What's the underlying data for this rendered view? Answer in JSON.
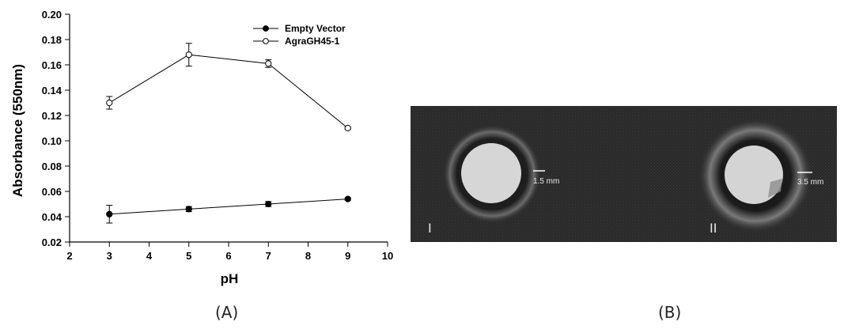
{
  "chart_data": {
    "type": "line",
    "title": "",
    "xlabel": "pH",
    "ylabel": "Absorbance (550nm)",
    "xlim": [
      2,
      10
    ],
    "ylim": [
      0.02,
      0.2
    ],
    "x_ticks": [
      "2",
      "3",
      "4",
      "5",
      "6",
      "7",
      "8",
      "9",
      "10"
    ],
    "y_ticks": [
      "0.02",
      "0.04",
      "0.06",
      "0.08",
      "0.10",
      "0.12",
      "0.14",
      "0.16",
      "0.18",
      "0.20"
    ],
    "legend_position": "top-right",
    "grid": false,
    "series": [
      {
        "name": "Empty Vector",
        "marker": "filled-circle",
        "x": [
          3,
          5,
          7,
          9
        ],
        "y": [
          0.042,
          0.046,
          0.05,
          0.054
        ],
        "err": [
          0.007,
          0.002,
          0.002,
          0.001
        ]
      },
      {
        "name": "AgraGH45-1",
        "marker": "open-circle",
        "x": [
          3,
          5,
          7,
          9
        ],
        "y": [
          0.13,
          0.168,
          0.161,
          0.11
        ],
        "err": [
          0.005,
          0.009,
          0.003,
          0.001
        ]
      }
    ]
  },
  "panels": {
    "a_caption": "(A)",
    "b_caption": "(B)"
  },
  "photo": {
    "background": "#2d2d2d",
    "halo_labels": [
      "1.5 mm",
      "3.5 mm"
    ],
    "well_labels": [
      "I",
      "II"
    ]
  }
}
